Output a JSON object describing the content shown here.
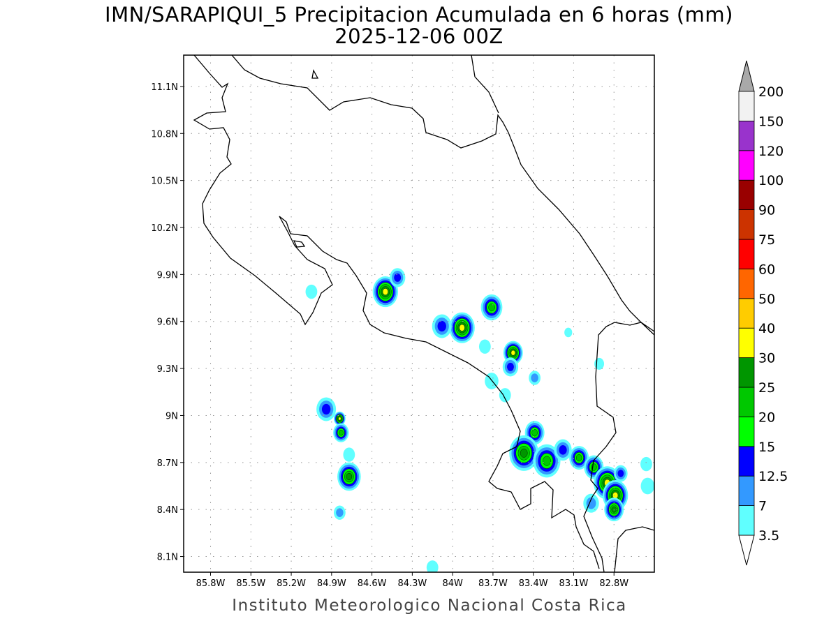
{
  "title": "IMN/SARAPIQUI_5 Precipitacion Acumulada en 6 horas (mm)",
  "subtitle": "2025-12-06 00Z",
  "footer": "Instituto Meteorologico Nacional Costa Rica",
  "map": {
    "lon_range": [
      -86.0,
      -82.5
    ],
    "lat_range": [
      8.0,
      11.3
    ],
    "grid": "dotted",
    "lon_ticks": [
      {
        "value": -85.8,
        "label": "85.8W"
      },
      {
        "value": -85.5,
        "label": "85.5W"
      },
      {
        "value": -85.2,
        "label": "85.2W"
      },
      {
        "value": -84.9,
        "label": "84.9W"
      },
      {
        "value": -84.6,
        "label": "84.6W"
      },
      {
        "value": -84.3,
        "label": "84.3W"
      },
      {
        "value": -84.0,
        "label": "84W"
      },
      {
        "value": -83.7,
        "label": "83.7W"
      },
      {
        "value": -83.4,
        "label": "83.4W"
      },
      {
        "value": -83.1,
        "label": "83.1W"
      },
      {
        "value": -82.8,
        "label": "82.8W"
      }
    ],
    "lat_ticks": [
      {
        "value": 11.1,
        "label": "11.1N"
      },
      {
        "value": 10.8,
        "label": "10.8N"
      },
      {
        "value": 10.5,
        "label": "10.5N"
      },
      {
        "value": 10.2,
        "label": "10.2N"
      },
      {
        "value": 9.9,
        "label": "9.9N"
      },
      {
        "value": 9.6,
        "label": "9.6N"
      },
      {
        "value": 9.3,
        "label": "9.3N"
      },
      {
        "value": 9.0,
        "label": "9N"
      },
      {
        "value": 8.7,
        "label": "8.7N"
      },
      {
        "value": 8.4,
        "label": "8.4N"
      },
      {
        "value": 8.1,
        "label": "8.1N"
      }
    ],
    "precip_cells": [
      {
        "lon": -84.5,
        "lat": 9.79,
        "max_mm": 35
      },
      {
        "lon": -84.41,
        "lat": 9.88,
        "max_mm": 14
      },
      {
        "lon": -83.93,
        "lat": 9.56,
        "max_mm": 35
      },
      {
        "lon": -84.08,
        "lat": 9.57,
        "max_mm": 14
      },
      {
        "lon": -83.71,
        "lat": 9.69,
        "max_mm": 22
      },
      {
        "lon": -83.55,
        "lat": 9.4,
        "max_mm": 35
      },
      {
        "lon": -83.57,
        "lat": 9.31,
        "max_mm": 14
      },
      {
        "lon": -83.39,
        "lat": 9.24,
        "max_mm": 10
      },
      {
        "lon": -83.71,
        "lat": 9.22,
        "max_mm": 5
      },
      {
        "lon": -83.76,
        "lat": 9.44,
        "max_mm": 5
      },
      {
        "lon": -83.61,
        "lat": 9.13,
        "max_mm": 5
      },
      {
        "lon": -84.94,
        "lat": 9.04,
        "max_mm": 14
      },
      {
        "lon": -84.84,
        "lat": 8.98,
        "max_mm": 35
      },
      {
        "lon": -84.83,
        "lat": 8.89,
        "max_mm": 22
      },
      {
        "lon": -84.77,
        "lat": 8.61,
        "max_mm": 27
      },
      {
        "lon": -84.84,
        "lat": 8.38,
        "max_mm": 8
      },
      {
        "lon": -84.77,
        "lat": 8.75,
        "max_mm": 5
      },
      {
        "lon": -84.15,
        "lat": 8.03,
        "max_mm": 5
      },
      {
        "lon": -85.05,
        "lat": 9.79,
        "max_mm": 5
      },
      {
        "lon": -82.91,
        "lat": 9.33,
        "max_mm": 5
      },
      {
        "lon": -83.39,
        "lat": 8.89,
        "max_mm": 22
      },
      {
        "lon": -83.47,
        "lat": 8.76,
        "max_mm": 27
      },
      {
        "lon": -83.3,
        "lat": 8.71,
        "max_mm": 24
      },
      {
        "lon": -83.18,
        "lat": 8.78,
        "max_mm": 14
      },
      {
        "lon": -83.06,
        "lat": 8.73,
        "max_mm": 22
      },
      {
        "lon": -82.95,
        "lat": 8.67,
        "max_mm": 22
      },
      {
        "lon": -82.85,
        "lat": 8.57,
        "max_mm": 35
      },
      {
        "lon": -82.79,
        "lat": 8.49,
        "max_mm": 35
      },
      {
        "lon": -82.8,
        "lat": 8.4,
        "max_mm": 25
      },
      {
        "lon": -82.75,
        "lat": 8.63,
        "max_mm": 14
      },
      {
        "lon": -82.56,
        "lat": 8.69,
        "max_mm": 5
      },
      {
        "lon": -82.55,
        "lat": 8.55,
        "max_mm": 5
      },
      {
        "lon": -82.97,
        "lat": 8.44,
        "max_mm": 10
      },
      {
        "lon": -83.14,
        "lat": 9.53,
        "max_mm": 5
      }
    ]
  },
  "colorbar": {
    "levels": [
      "3.5",
      "7",
      "12.5",
      "15",
      "20",
      "25",
      "30",
      "40",
      "50",
      "60",
      "75",
      "90",
      "100",
      "120",
      "150",
      "200"
    ],
    "level_values": [
      3.5,
      7,
      12.5,
      15,
      20,
      25,
      30,
      40,
      50,
      60,
      75,
      90,
      100,
      120,
      150,
      200
    ],
    "colors": [
      "#60ffff",
      "#3399ff",
      "#0000ff",
      "#00ff00",
      "#00c800",
      "#009600",
      "#ffff00",
      "#ffcc00",
      "#ff6600",
      "#ff0000",
      "#cc3300",
      "#990000",
      "#ff00ff",
      "#9933cc",
      "#f2f2f2"
    ],
    "over_color": "#a9a9a9",
    "under_color": "#ffffff"
  }
}
